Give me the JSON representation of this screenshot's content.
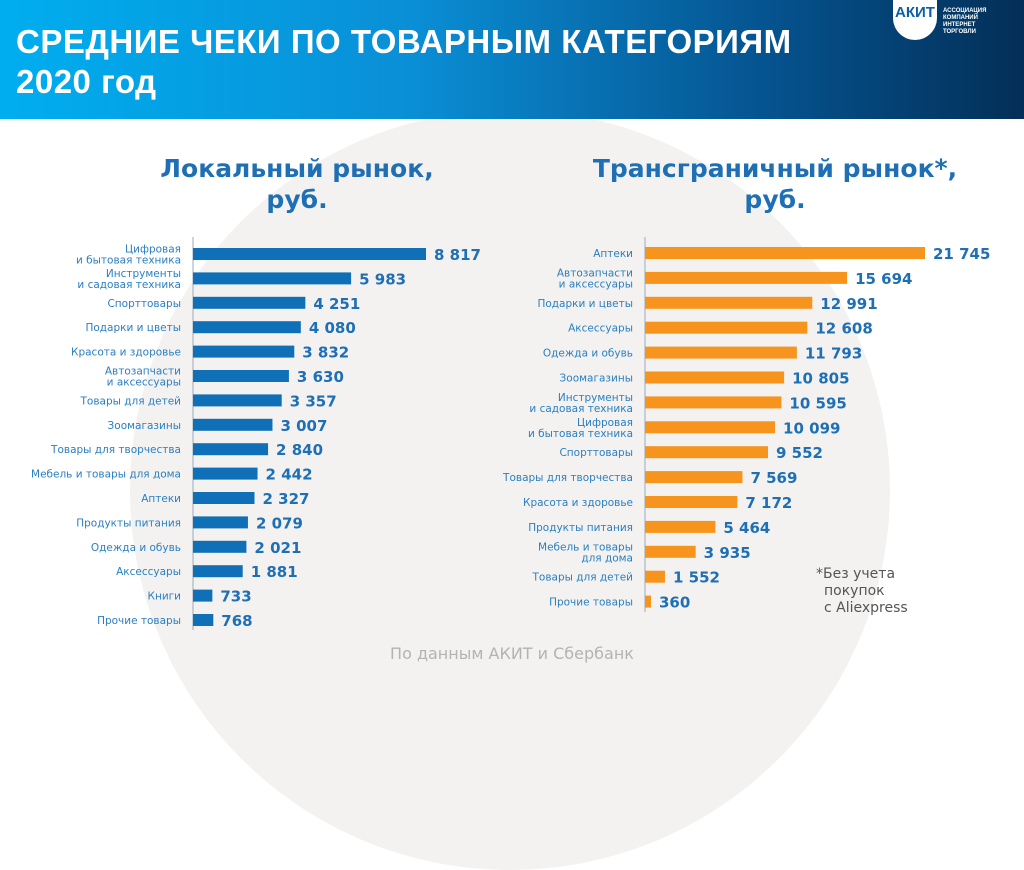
{
  "header": {
    "title_line1": "СРЕДНИЕ ЧЕКИ ПО ТОВАРНЫМ КАТЕГОРИЯМ",
    "title_line2": "2020 год",
    "logo": "АКИТ",
    "logo_sub": "АССОЦИАЦИЯ КОМПАНИЙ ИНТЕРНЕТ ТОРГОВЛИ"
  },
  "chart_data": [
    {
      "type": "bar",
      "orientation": "horizontal",
      "title": "Локальный рынок, руб.",
      "color": "#0f70b7",
      "categories": [
        "Цифровая\nи бытовая техника",
        "Инструменты\nи садовая техника",
        "Спорттовары",
        "Подарки и цветы",
        "Красота и здоровье",
        "Автозапчасти\nи аксессуары",
        "Товары для детей",
        "Зоомагазины",
        "Товары для творчества",
        "Мебель и товары для дома",
        "Аптеки",
        "Продукты питания",
        "Одежда и обувь",
        "Аксессуары",
        "Книги",
        "Прочие товары"
      ],
      "values": [
        8817,
        5983,
        4251,
        4080,
        3832,
        3630,
        3357,
        3007,
        2840,
        2442,
        2327,
        2079,
        2021,
        1881,
        733,
        768
      ],
      "labels": [
        "8 817",
        "5 983",
        "4 251",
        "4 080",
        "3 832",
        "3 630",
        "3 357",
        "3 007",
        "2 840",
        "2 442",
        "2 327",
        "2 079",
        "2 021",
        "1 881",
        "733",
        "768"
      ]
    },
    {
      "type": "bar",
      "orientation": "horizontal",
      "title": "Трансграничный рынок*, руб.",
      "color": "#f7941d",
      "categories": [
        "Аптеки",
        "Автозапчасти\nи аксессуары",
        "Подарки и цветы",
        "Аксессуары",
        "Одежда и обувь",
        "Зоомагазины",
        "Инструменты\nи садовая техника",
        "Цифровая\nи бытовая техника",
        "Спорттовары",
        "Товары для творчества",
        "Красота и здоровье",
        "Продукты питания",
        "Мебель и товары\nдля дома",
        "Товары для детей",
        "Прочие товары"
      ],
      "values": [
        21745,
        15694,
        12991,
        12608,
        11793,
        10805,
        10595,
        10099,
        9552,
        7569,
        7172,
        5464,
        3935,
        1552,
        360
      ],
      "labels": [
        "21 745",
        "15 694",
        "12 991",
        "12 608",
        "11 793",
        "10 805",
        "10 595",
        "10 099",
        "9 552",
        "7 569",
        "7 172",
        "5 464",
        "3 935",
        "1 552",
        "360"
      ]
    }
  ],
  "subtitles": {
    "left_line1": "Локальный рынок,",
    "left_line2": "руб.",
    "right_line1": "Трансграничный рынок*,",
    "right_line2": "руб."
  },
  "footnote": {
    "line1": "*Без учета",
    "line2": "покупок",
    "line3": "с Aliexpress"
  },
  "source": "По данным АКИТ и Сбербанк"
}
